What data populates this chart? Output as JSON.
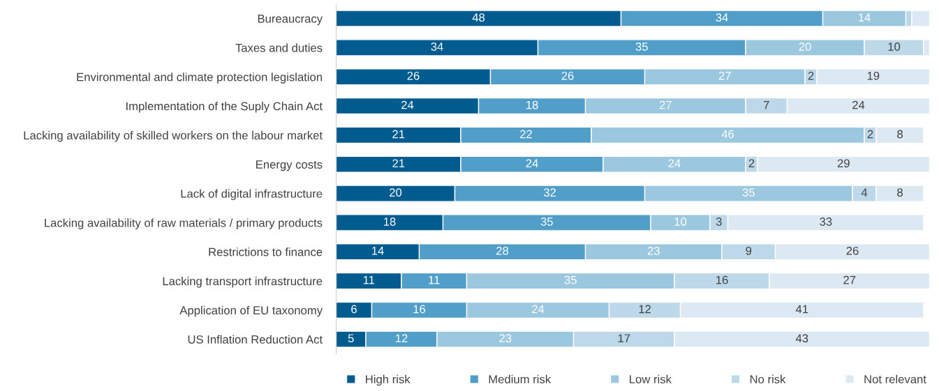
{
  "chart_data": {
    "type": "bar",
    "orientation": "horizontal",
    "stacked": true,
    "legend": "bottom",
    "grid": false,
    "tick_labels": "y",
    "xlim": [
      0,
      100
    ],
    "categories": [
      "Bureaucracy",
      "Taxes and duties",
      "Environmental and climate protection legislation",
      "Implementation of the Suply Chain Act",
      "Lacking availability of skilled workers on the labour market",
      "Energy costs",
      "Lack of digital infrastructure",
      "Lacking availability of raw materials / primary products",
      "Restrictions to finance",
      "Lacking transport infrastructure",
      "Application of EU taxonomy",
      "US Inflation Reduction Act"
    ],
    "series": [
      {
        "name": "High risk",
        "color": "#005b8f",
        "values": [
          48,
          34,
          26,
          24,
          21,
          21,
          20,
          18,
          14,
          11,
          6,
          5
        ],
        "value_labels": [
          "48",
          "34",
          "26",
          "24",
          "21",
          "21",
          "20",
          "18",
          "14",
          "11",
          "6",
          "5"
        ]
      },
      {
        "name": "Medium risk",
        "color": "#519fc8",
        "values": [
          34,
          35,
          26,
          18,
          22,
          24,
          32,
          35,
          28,
          11,
          16,
          12
        ],
        "value_labels": [
          "34",
          "35",
          "26",
          "18",
          "22",
          "24",
          "32",
          "35",
          "28",
          "11",
          "16",
          "12"
        ]
      },
      {
        "name": "Low risk",
        "color": "#9bc7df",
        "values": [
          14,
          20,
          27,
          27,
          46,
          24,
          35,
          10,
          23,
          35,
          24,
          23
        ],
        "value_labels": [
          "14",
          "20",
          "27",
          "27",
          "46",
          "24",
          "35",
          "10",
          "23",
          "35",
          "24",
          "23"
        ]
      },
      {
        "name": "No risk",
        "color": "#bcd8e9",
        "values": [
          1,
          10,
          2,
          7,
          2,
          2,
          4,
          3,
          9,
          16,
          12,
          17
        ],
        "value_labels": [
          null,
          "10",
          "2",
          "7",
          "2",
          "2",
          "4",
          "3",
          "9",
          "16",
          "12",
          "17"
        ]
      },
      {
        "name": "Not relevant",
        "color": "#dde9f2",
        "values": [
          3,
          1,
          19,
          24,
          8,
          29,
          8,
          33,
          26,
          27,
          41,
          43
        ],
        "value_labels": [
          null,
          null,
          "19",
          "24",
          "8",
          "29",
          "8",
          "33",
          "26",
          "27",
          "41",
          "43"
        ]
      }
    ]
  }
}
